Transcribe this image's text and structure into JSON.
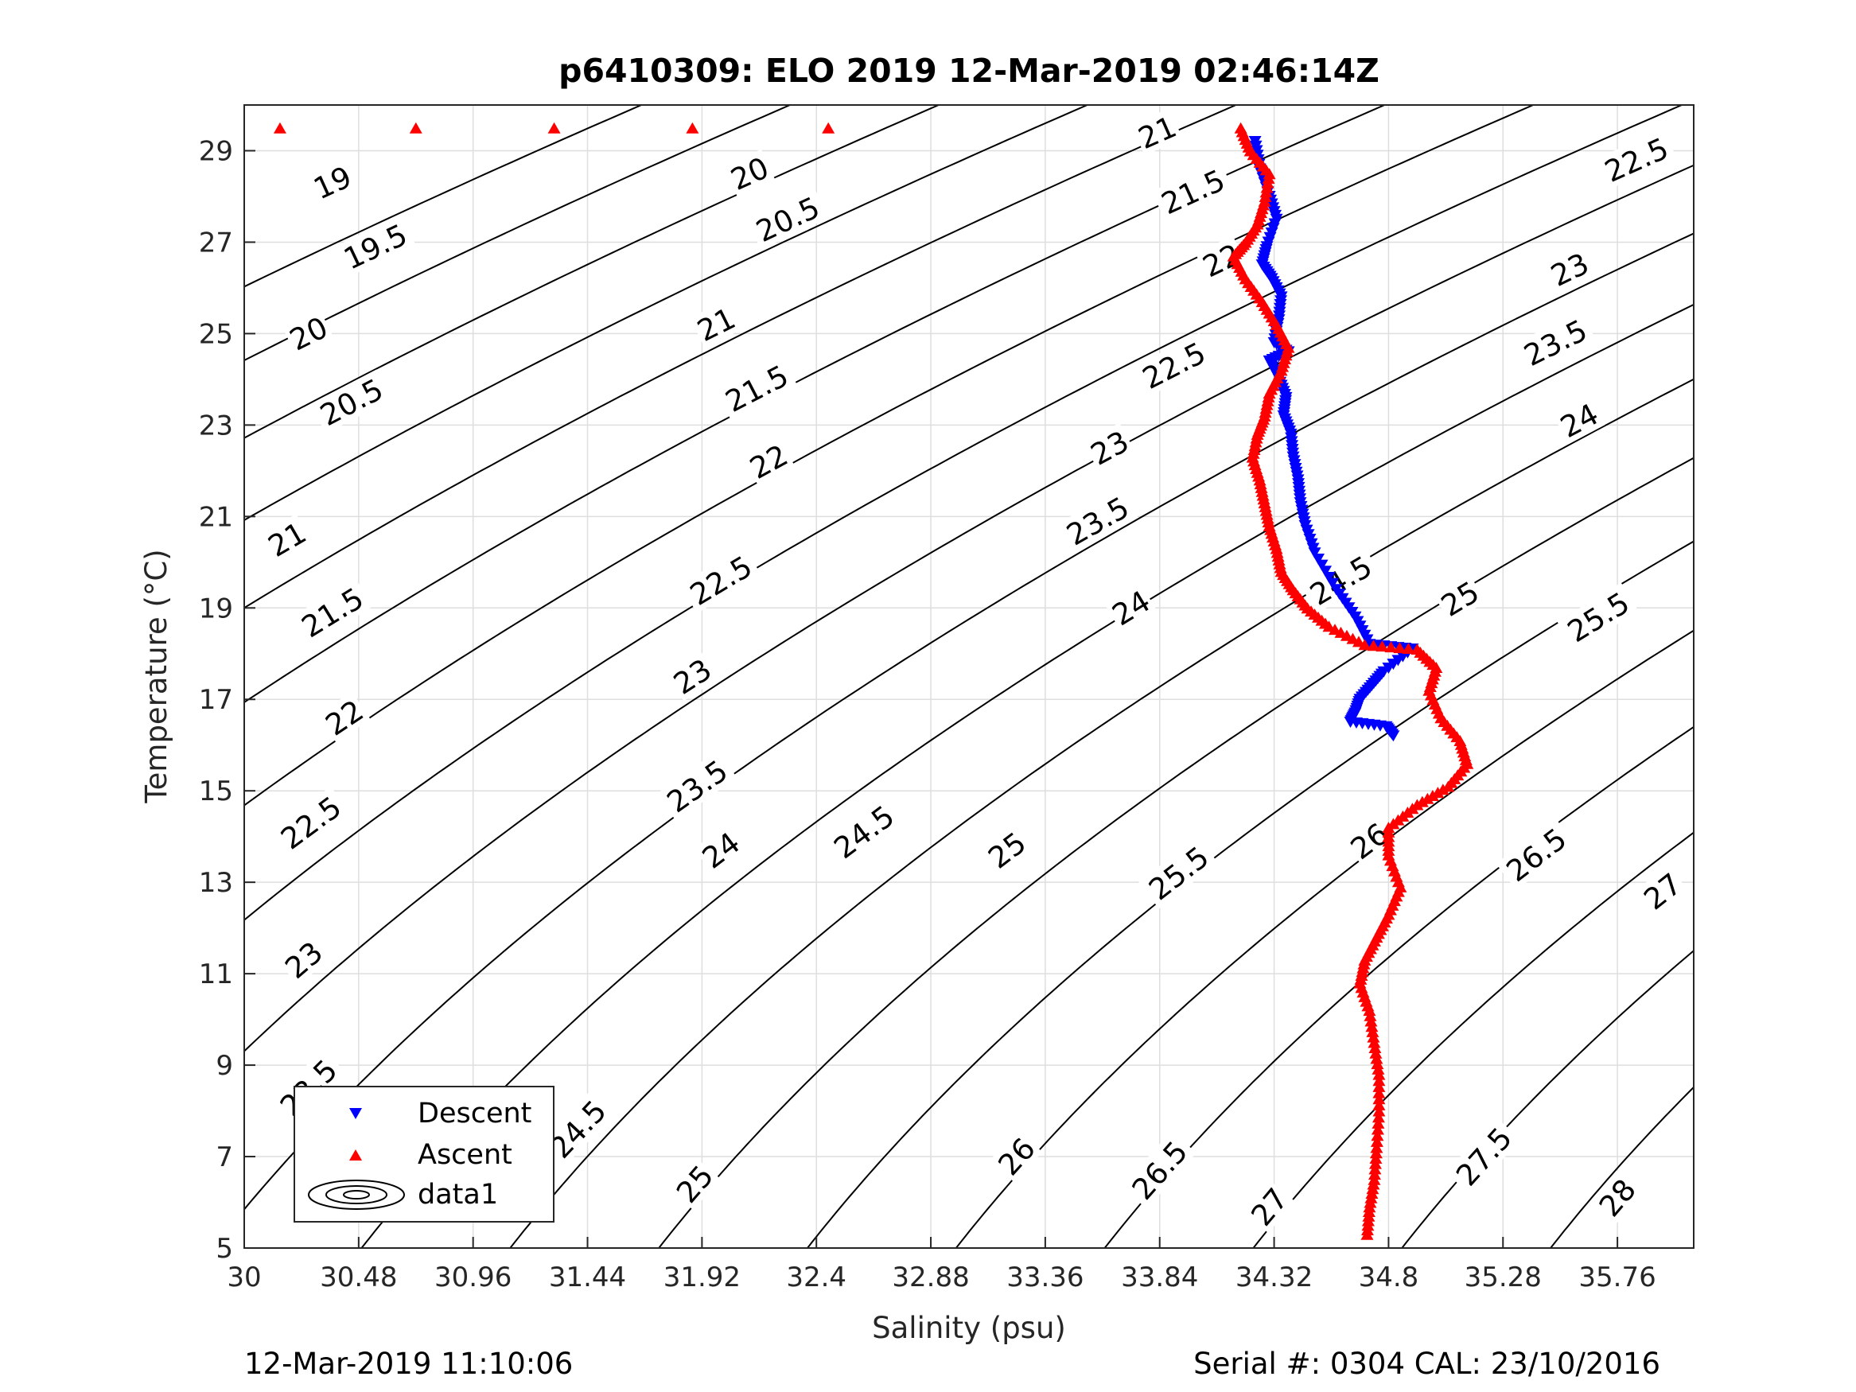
{
  "chart_data": {
    "type": "scatter",
    "title": "p6410309: ELO 2019 12-Mar-2019 02:46:14Z",
    "xlabel": "Salinity (psu)",
    "ylabel": "Temperature (°C)",
    "xlim": [
      30,
      36.08
    ],
    "ylim": [
      5,
      30
    ],
    "x_ticks": [
      "30",
      "30.48",
      "30.96",
      "31.44",
      "31.92",
      "32.4",
      "32.88",
      "33.36",
      "33.84",
      "34.32",
      "34.8",
      "35.28",
      "35.76"
    ],
    "y_ticks": [
      "5",
      "7",
      "9",
      "11",
      "13",
      "15",
      "17",
      "19",
      "21",
      "23",
      "25",
      "27",
      "29"
    ],
    "grid": true,
    "legend": {
      "position": "bottom-left",
      "entries": [
        {
          "label": "Descent",
          "marker": "triangle-down",
          "color": "#0000ff"
        },
        {
          "label": "Ascent",
          "marker": "triangle-up",
          "color": "#ff0000"
        },
        {
          "label": "data1",
          "marker": "contour",
          "color": "#000000"
        }
      ]
    },
    "contour_levels": [
      "19",
      "19.5",
      "20",
      "20.5",
      "21",
      "21.5",
      "22",
      "22.5",
      "23",
      "23.5",
      "24",
      "24.5",
      "25",
      "25.5",
      "26",
      "26.5",
      "27",
      "27.5",
      "28"
    ],
    "contour_labels": [
      {
        "text": "19",
        "s": 30.37,
        "t": 28.3
      },
      {
        "text": "19.5",
        "s": 30.55,
        "t": 26.9
      },
      {
        "text": "20",
        "s": 30.27,
        "t": 25.0
      },
      {
        "text": "20.5",
        "s": 30.45,
        "t": 23.5
      },
      {
        "text": "21",
        "s": 30.18,
        "t": 20.5
      },
      {
        "text": "21.5",
        "s": 30.37,
        "t": 18.9
      },
      {
        "text": "22",
        "s": 30.42,
        "t": 16.6
      },
      {
        "text": "22.5",
        "s": 30.28,
        "t": 14.3
      },
      {
        "text": "23",
        "s": 30.25,
        "t": 11.3
      },
      {
        "text": "23.5",
        "s": 30.27,
        "t": 8.5
      },
      {
        "text": "24",
        "s": 30.55,
        "t": 6.1
      },
      {
        "text": "24.5",
        "s": 31.4,
        "t": 7.6
      },
      {
        "text": "25",
        "s": 31.89,
        "t": 6.4
      },
      {
        "text": "26",
        "s": 33.24,
        "t": 7.0
      },
      {
        "text": "26.5",
        "s": 33.84,
        "t": 6.7
      },
      {
        "text": "27",
        "s": 34.3,
        "t": 5.9
      },
      {
        "text": "27.5",
        "s": 35.2,
        "t": 7.0
      },
      {
        "text": "28",
        "s": 35.76,
        "t": 6.1
      },
      {
        "text": "24",
        "s": 32.0,
        "t": 13.7
      },
      {
        "text": "24.5",
        "s": 32.6,
        "t": 14.1
      },
      {
        "text": "25",
        "s": 33.2,
        "t": 13.7
      },
      {
        "text": "25.5",
        "s": 33.92,
        "t": 13.2
      },
      {
        "text": "26",
        "s": 34.72,
        "t": 13.9
      },
      {
        "text": "26.5",
        "s": 35.42,
        "t": 13.6
      },
      {
        "text": "27",
        "s": 35.95,
        "t": 12.8
      },
      {
        "text": "23.5",
        "s": 31.9,
        "t": 15.1
      },
      {
        "text": "23",
        "s": 31.88,
        "t": 17.5
      },
      {
        "text": "22.5",
        "s": 32.0,
        "t": 19.6
      },
      {
        "text": "22",
        "s": 32.2,
        "t": 22.2
      },
      {
        "text": "21.5",
        "s": 32.15,
        "t": 23.8
      },
      {
        "text": "21",
        "s": 31.98,
        "t": 25.2
      },
      {
        "text": "20.5",
        "s": 32.28,
        "t": 27.5
      },
      {
        "text": "20",
        "s": 32.12,
        "t": 28.5
      },
      {
        "text": "21",
        "s": 33.83,
        "t": 29.4
      },
      {
        "text": "21.5",
        "s": 33.98,
        "t": 28.1
      },
      {
        "text": "22",
        "s": 34.1,
        "t": 26.6
      },
      {
        "text": "22.5",
        "s": 33.9,
        "t": 24.3
      },
      {
        "text": "23",
        "s": 33.63,
        "t": 22.5
      },
      {
        "text": "23.5",
        "s": 33.58,
        "t": 20.9
      },
      {
        "text": "24",
        "s": 33.72,
        "t": 19.0
      },
      {
        "text": "24.5",
        "s": 34.6,
        "t": 19.6
      },
      {
        "text": "25",
        "s": 35.1,
        "t": 19.2
      },
      {
        "text": "25.5",
        "s": 35.68,
        "t": 18.8
      },
      {
        "text": "24",
        "s": 35.6,
        "t": 23.1
      },
      {
        "text": "23.5",
        "s": 35.5,
        "t": 24.8
      },
      {
        "text": "23",
        "s": 35.56,
        "t": 26.4
      },
      {
        "text": "22.5",
        "s": 35.84,
        "t": 28.8
      }
    ],
    "series": [
      {
        "name": "Descent",
        "marker": "triangle-down",
        "color": "#0000ff",
        "x": [
          34.24,
          34.26,
          34.3,
          34.33,
          34.29,
          34.27,
          34.31,
          34.35,
          34.34,
          34.32,
          34.38,
          34.3,
          34.34,
          34.37,
          34.36,
          34.39,
          34.4,
          34.42,
          34.43,
          34.45,
          34.49,
          34.58,
          34.66,
          34.72,
          34.9,
          34.78,
          34.73,
          34.68,
          34.66,
          34.64,
          34.79,
          34.82
        ],
        "y": [
          29.2,
          28.6,
          28.0,
          27.5,
          26.9,
          26.5,
          26.2,
          25.8,
          25.3,
          24.8,
          24.6,
          24.4,
          24.0,
          23.6,
          23.2,
          22.8,
          22.3,
          21.8,
          21.3,
          20.8,
          20.2,
          19.4,
          18.8,
          18.2,
          18.1,
          17.6,
          17.3,
          17.0,
          16.7,
          16.5,
          16.4,
          16.2
        ]
      },
      {
        "name": "Ascent",
        "marker": "triangle-up",
        "color": "#ff0000",
        "x": [
          30.15,
          30.72,
          31.3,
          31.88,
          32.45,
          34.18,
          34.22,
          34.3,
          34.28,
          34.25,
          34.2,
          34.15,
          34.2,
          34.27,
          34.33,
          34.38,
          34.35,
          34.3,
          34.28,
          34.25,
          34.23,
          34.26,
          34.28,
          34.3,
          34.33,
          34.35,
          34.4,
          34.46,
          34.55,
          34.7,
          34.92,
          35.0,
          34.97,
          35.02,
          35.1,
          35.13,
          35.05,
          34.92,
          34.8,
          34.8,
          34.85,
          34.8,
          34.75,
          34.7,
          34.68,
          34.72,
          34.74,
          34.76,
          34.76,
          34.75,
          34.74,
          34.72,
          34.71
        ],
        "y": [
          29.5,
          29.5,
          29.5,
          29.5,
          29.5,
          29.5,
          29.0,
          28.5,
          27.9,
          27.4,
          27.0,
          26.7,
          26.2,
          25.7,
          25.2,
          24.7,
          24.2,
          23.7,
          23.2,
          22.8,
          22.3,
          21.8,
          21.3,
          20.8,
          20.3,
          19.8,
          19.4,
          19.0,
          18.6,
          18.2,
          18.1,
          17.7,
          17.2,
          16.6,
          16.1,
          15.6,
          15.1,
          14.7,
          14.2,
          13.6,
          12.9,
          12.3,
          11.8,
          11.3,
          10.8,
          10.2,
          9.5,
          8.8,
          8.0,
          7.2,
          6.5,
          5.9,
          5.3
        ]
      }
    ]
  },
  "footer": {
    "left": "12-Mar-2019 11:10:06",
    "right": "Serial #: 0304  CAL: 23/10/2016"
  }
}
